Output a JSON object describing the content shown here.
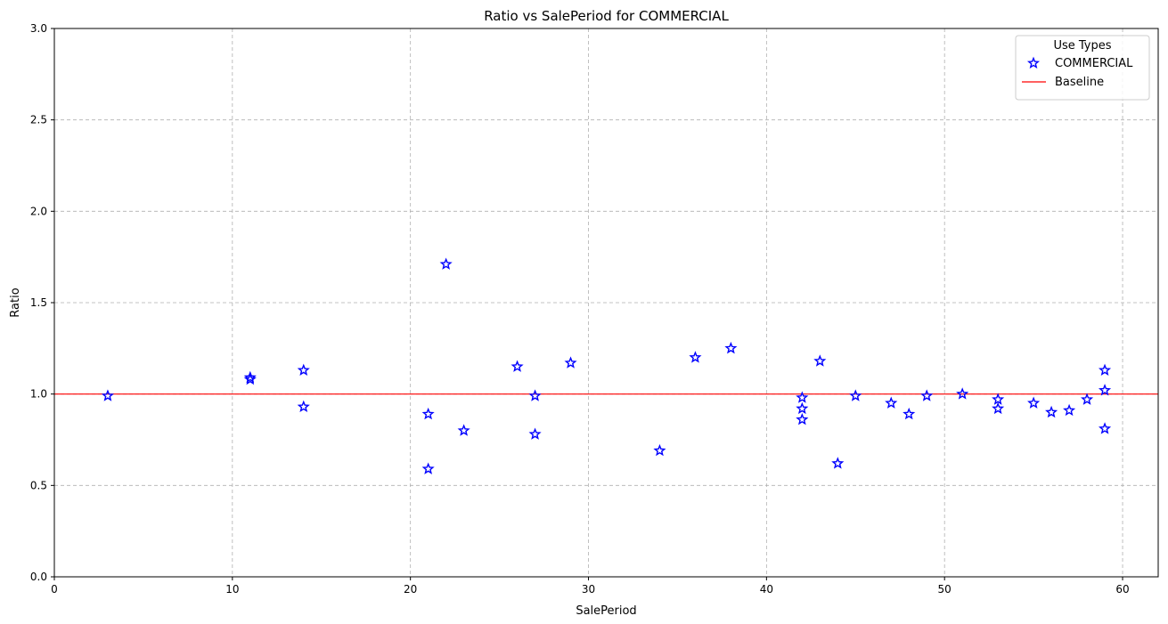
{
  "chart_data": {
    "type": "scatter",
    "title": "Ratio vs SalePeriod for COMMERCIAL",
    "xlabel": "SalePeriod",
    "ylabel": "Ratio",
    "xlim": [
      0,
      62
    ],
    "ylim": [
      0,
      3.0
    ],
    "xticks": [
      0,
      10,
      20,
      30,
      40,
      50,
      60
    ],
    "yticks": [
      0.0,
      0.5,
      1.0,
      1.5,
      2.0,
      2.5,
      3.0
    ],
    "ytick_labels": [
      "0.0",
      "0.5",
      "1.0",
      "1.5",
      "2.0",
      "2.5",
      "3.0"
    ],
    "grid": true,
    "legend": {
      "title": "Use Types",
      "placement": "top-right",
      "entries": [
        "COMMERCIAL",
        "Baseline"
      ]
    },
    "series": [
      {
        "name": "COMMERCIAL",
        "marker": "star",
        "color": "#0000ff",
        "x": [
          3,
          11,
          11,
          14,
          14,
          21,
          21,
          22,
          23,
          26,
          27,
          27,
          29,
          34,
          36,
          38,
          42,
          42,
          42,
          43,
          44,
          45,
          47,
          48,
          49,
          51,
          53,
          53,
          55,
          56,
          57,
          58,
          59,
          59,
          59
        ],
        "y": [
          0.99,
          1.09,
          1.08,
          1.13,
          0.93,
          0.89,
          0.59,
          1.71,
          0.8,
          1.15,
          0.99,
          0.78,
          1.17,
          0.69,
          1.2,
          1.25,
          0.98,
          0.92,
          0.86,
          1.18,
          0.62,
          0.99,
          0.95,
          0.89,
          0.99,
          1.0,
          0.97,
          0.92,
          0.95,
          0.9,
          0.91,
          0.97,
          1.13,
          1.02,
          0.81
        ]
      }
    ],
    "baseline": {
      "name": "Baseline",
      "y": 1.0,
      "color": "#ff0000"
    }
  }
}
